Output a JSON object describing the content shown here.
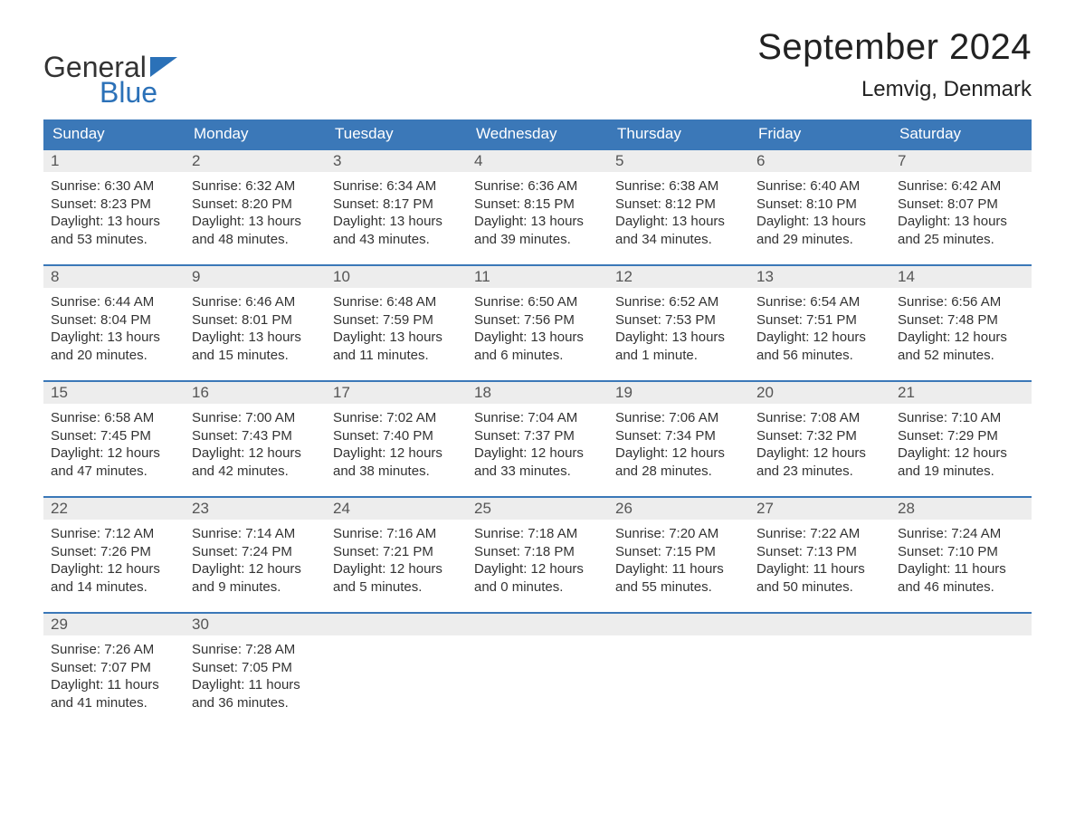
{
  "logo": {
    "word1": "General",
    "word2": "Blue",
    "icon_color": "#2b71b8"
  },
  "title": "September 2024",
  "location": "Lemvig, Denmark",
  "colors": {
    "header_bg": "#3b78b8",
    "header_text": "#ffffff",
    "strip_bg": "#ededed",
    "border": "#3b78b8",
    "text": "#333333"
  },
  "weekdays": [
    "Sunday",
    "Monday",
    "Tuesday",
    "Wednesday",
    "Thursday",
    "Friday",
    "Saturday"
  ],
  "weeks": [
    [
      {
        "n": "1",
        "sunrise": "Sunrise: 6:30 AM",
        "sunset": "Sunset: 8:23 PM",
        "daylight": "Daylight: 13 hours and 53 minutes."
      },
      {
        "n": "2",
        "sunrise": "Sunrise: 6:32 AM",
        "sunset": "Sunset: 8:20 PM",
        "daylight": "Daylight: 13 hours and 48 minutes."
      },
      {
        "n": "3",
        "sunrise": "Sunrise: 6:34 AM",
        "sunset": "Sunset: 8:17 PM",
        "daylight": "Daylight: 13 hours and 43 minutes."
      },
      {
        "n": "4",
        "sunrise": "Sunrise: 6:36 AM",
        "sunset": "Sunset: 8:15 PM",
        "daylight": "Daylight: 13 hours and 39 minutes."
      },
      {
        "n": "5",
        "sunrise": "Sunrise: 6:38 AM",
        "sunset": "Sunset: 8:12 PM",
        "daylight": "Daylight: 13 hours and 34 minutes."
      },
      {
        "n": "6",
        "sunrise": "Sunrise: 6:40 AM",
        "sunset": "Sunset: 8:10 PM",
        "daylight": "Daylight: 13 hours and 29 minutes."
      },
      {
        "n": "7",
        "sunrise": "Sunrise: 6:42 AM",
        "sunset": "Sunset: 8:07 PM",
        "daylight": "Daylight: 13 hours and 25 minutes."
      }
    ],
    [
      {
        "n": "8",
        "sunrise": "Sunrise: 6:44 AM",
        "sunset": "Sunset: 8:04 PM",
        "daylight": "Daylight: 13 hours and 20 minutes."
      },
      {
        "n": "9",
        "sunrise": "Sunrise: 6:46 AM",
        "sunset": "Sunset: 8:01 PM",
        "daylight": "Daylight: 13 hours and 15 minutes."
      },
      {
        "n": "10",
        "sunrise": "Sunrise: 6:48 AM",
        "sunset": "Sunset: 7:59 PM",
        "daylight": "Daylight: 13 hours and 11 minutes."
      },
      {
        "n": "11",
        "sunrise": "Sunrise: 6:50 AM",
        "sunset": "Sunset: 7:56 PM",
        "daylight": "Daylight: 13 hours and 6 minutes."
      },
      {
        "n": "12",
        "sunrise": "Sunrise: 6:52 AM",
        "sunset": "Sunset: 7:53 PM",
        "daylight": "Daylight: 13 hours and 1 minute."
      },
      {
        "n": "13",
        "sunrise": "Sunrise: 6:54 AM",
        "sunset": "Sunset: 7:51 PM",
        "daylight": "Daylight: 12 hours and 56 minutes."
      },
      {
        "n": "14",
        "sunrise": "Sunrise: 6:56 AM",
        "sunset": "Sunset: 7:48 PM",
        "daylight": "Daylight: 12 hours and 52 minutes."
      }
    ],
    [
      {
        "n": "15",
        "sunrise": "Sunrise: 6:58 AM",
        "sunset": "Sunset: 7:45 PM",
        "daylight": "Daylight: 12 hours and 47 minutes."
      },
      {
        "n": "16",
        "sunrise": "Sunrise: 7:00 AM",
        "sunset": "Sunset: 7:43 PM",
        "daylight": "Daylight: 12 hours and 42 minutes."
      },
      {
        "n": "17",
        "sunrise": "Sunrise: 7:02 AM",
        "sunset": "Sunset: 7:40 PM",
        "daylight": "Daylight: 12 hours and 38 minutes."
      },
      {
        "n": "18",
        "sunrise": "Sunrise: 7:04 AM",
        "sunset": "Sunset: 7:37 PM",
        "daylight": "Daylight: 12 hours and 33 minutes."
      },
      {
        "n": "19",
        "sunrise": "Sunrise: 7:06 AM",
        "sunset": "Sunset: 7:34 PM",
        "daylight": "Daylight: 12 hours and 28 minutes."
      },
      {
        "n": "20",
        "sunrise": "Sunrise: 7:08 AM",
        "sunset": "Sunset: 7:32 PM",
        "daylight": "Daylight: 12 hours and 23 minutes."
      },
      {
        "n": "21",
        "sunrise": "Sunrise: 7:10 AM",
        "sunset": "Sunset: 7:29 PM",
        "daylight": "Daylight: 12 hours and 19 minutes."
      }
    ],
    [
      {
        "n": "22",
        "sunrise": "Sunrise: 7:12 AM",
        "sunset": "Sunset: 7:26 PM",
        "daylight": "Daylight: 12 hours and 14 minutes."
      },
      {
        "n": "23",
        "sunrise": "Sunrise: 7:14 AM",
        "sunset": "Sunset: 7:24 PM",
        "daylight": "Daylight: 12 hours and 9 minutes."
      },
      {
        "n": "24",
        "sunrise": "Sunrise: 7:16 AM",
        "sunset": "Sunset: 7:21 PM",
        "daylight": "Daylight: 12 hours and 5 minutes."
      },
      {
        "n": "25",
        "sunrise": "Sunrise: 7:18 AM",
        "sunset": "Sunset: 7:18 PM",
        "daylight": "Daylight: 12 hours and 0 minutes."
      },
      {
        "n": "26",
        "sunrise": "Sunrise: 7:20 AM",
        "sunset": "Sunset: 7:15 PM",
        "daylight": "Daylight: 11 hours and 55 minutes."
      },
      {
        "n": "27",
        "sunrise": "Sunrise: 7:22 AM",
        "sunset": "Sunset: 7:13 PM",
        "daylight": "Daylight: 11 hours and 50 minutes."
      },
      {
        "n": "28",
        "sunrise": "Sunrise: 7:24 AM",
        "sunset": "Sunset: 7:10 PM",
        "daylight": "Daylight: 11 hours and 46 minutes."
      }
    ],
    [
      {
        "n": "29",
        "sunrise": "Sunrise: 7:26 AM",
        "sunset": "Sunset: 7:07 PM",
        "daylight": "Daylight: 11 hours and 41 minutes."
      },
      {
        "n": "30",
        "sunrise": "Sunrise: 7:28 AM",
        "sunset": "Sunset: 7:05 PM",
        "daylight": "Daylight: 11 hours and 36 minutes."
      },
      {
        "n": "",
        "sunrise": "",
        "sunset": "",
        "daylight": ""
      },
      {
        "n": "",
        "sunrise": "",
        "sunset": "",
        "daylight": ""
      },
      {
        "n": "",
        "sunrise": "",
        "sunset": "",
        "daylight": ""
      },
      {
        "n": "",
        "sunrise": "",
        "sunset": "",
        "daylight": ""
      },
      {
        "n": "",
        "sunrise": "",
        "sunset": "",
        "daylight": ""
      }
    ]
  ]
}
